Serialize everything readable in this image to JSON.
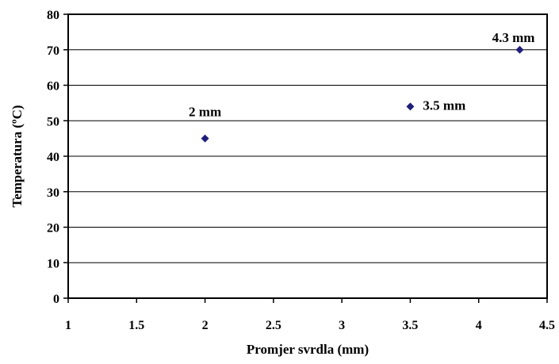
{
  "chart_data": {
    "type": "scatter",
    "title": "",
    "xlabel": "Promjer svrdla (mm)",
    "ylabel": "Temperatura (ºC)",
    "xlim": [
      1,
      4.5
    ],
    "ylim": [
      0,
      80
    ],
    "x_ticks": [
      "1",
      "1.5",
      "2",
      "2.5",
      "3",
      "3.5",
      "4",
      "4.5"
    ],
    "y_ticks": [
      "0",
      "10",
      "20",
      "30",
      "40",
      "50",
      "60",
      "70",
      "80"
    ],
    "x_tick_values": [
      1,
      1.5,
      2,
      2.5,
      3,
      3.5,
      4,
      4.5
    ],
    "y_tick_values": [
      0,
      10,
      20,
      30,
      40,
      50,
      60,
      70,
      80
    ],
    "grid": "horizontal",
    "legend": "none",
    "marker": "diamond",
    "marker_color": "#1f1f7a",
    "series": [
      {
        "points": [
          {
            "x": 2,
            "y": 45,
            "label": "2 mm"
          },
          {
            "x": 3.5,
            "y": 54,
            "label": "3.5 mm"
          },
          {
            "x": 4.3,
            "y": 70,
            "label": "4.3 mm"
          }
        ]
      }
    ]
  }
}
